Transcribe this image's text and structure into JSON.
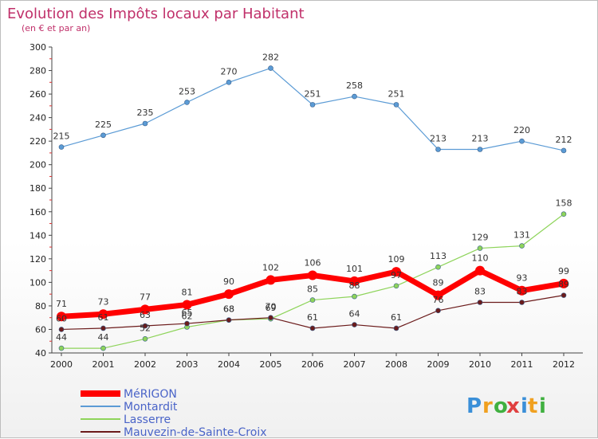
{
  "chart_data": {
    "type": "line",
    "title": "Evolution des Impôts locaux par Habitant",
    "subtitle": "(en € et par an)",
    "x": [
      "2000",
      "2001",
      "2002",
      "2003",
      "2004",
      "2005",
      "2006",
      "2007",
      "2008",
      "2009",
      "2010",
      "2011",
      "2012"
    ],
    "ylim": [
      40,
      300
    ],
    "yticks": [
      40,
      60,
      80,
      100,
      120,
      140,
      160,
      180,
      200,
      220,
      240,
      260,
      280,
      300
    ],
    "grid": false,
    "legend_position": "bottom-left",
    "series": [
      {
        "name": "MéRIGON",
        "color": "#ff0000",
        "values": [
          71,
          73,
          77,
          81,
          90,
          102,
          106,
          101,
          109,
          89,
          110,
          93,
          99
        ],
        "labels": [
          "71",
          "73",
          "77",
          "81",
          "90",
          "102",
          "106",
          "101",
          "109",
          "89",
          "110",
          "93",
          "99"
        ]
      },
      {
        "name": "Montardit",
        "color": "#5b9bd5",
        "values": [
          215,
          225,
          235,
          253,
          270,
          282,
          251,
          258,
          251,
          213,
          213,
          220,
          212
        ],
        "labels": [
          "215",
          "225",
          "235",
          "253",
          "270",
          "282",
          "251",
          "258",
          "251",
          "213",
          "213",
          "220",
          "212"
        ]
      },
      {
        "name": "Lasserre",
        "color": "#8ed45a",
        "values": [
          44,
          44,
          52,
          62,
          68,
          69,
          85,
          88,
          97,
          113,
          129,
          131,
          158
        ],
        "labels": [
          "44",
          "44",
          "52",
          "62",
          "68",
          "69",
          "85",
          "88",
          "97",
          "113",
          "129",
          "131",
          "158"
        ]
      },
      {
        "name": "Mauvezin-de-Sainte-Croix",
        "color": "#6b1b1b",
        "values": [
          60,
          61,
          63,
          65,
          68,
          70,
          61,
          64,
          61,
          76,
          83,
          83,
          89
        ],
        "labels": [
          "60",
          "61",
          "63",
          "65",
          "68",
          "70",
          "61",
          "64",
          "61",
          "76",
          "83",
          "83",
          "89"
        ]
      }
    ]
  },
  "brand": {
    "letters": [
      "P",
      "r",
      "o",
      "x",
      "i",
      "t",
      "i"
    ],
    "colors": [
      "#3a8fd8",
      "#f0a020",
      "#40b040",
      "#e04040",
      "#3a8fd8",
      "#f0a020",
      "#40b040"
    ]
  }
}
